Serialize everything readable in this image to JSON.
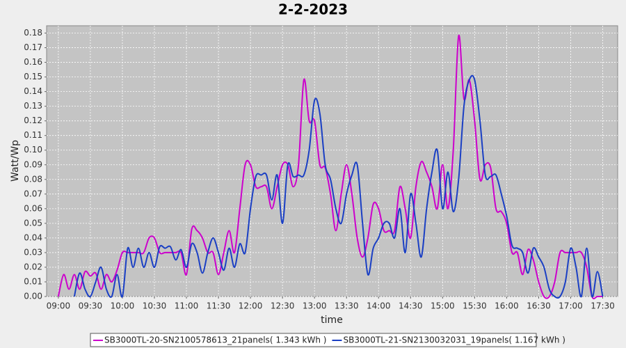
{
  "chart_data": {
    "type": "line",
    "title": "2-2-2023",
    "x_label": "time",
    "y_label": "Watt/Wp",
    "x": [
      "09:00",
      "09:05",
      "09:10",
      "09:15",
      "09:20",
      "09:25",
      "09:30",
      "09:35",
      "09:40",
      "09:45",
      "09:50",
      "09:55",
      "10:00",
      "10:05",
      "10:10",
      "10:15",
      "10:20",
      "10:25",
      "10:30",
      "10:35",
      "10:40",
      "10:45",
      "10:50",
      "10:55",
      "11:00",
      "11:05",
      "11:10",
      "11:15",
      "11:20",
      "11:25",
      "11:30",
      "11:35",
      "11:40",
      "11:45",
      "11:50",
      "11:55",
      "12:00",
      "12:05",
      "12:10",
      "12:15",
      "12:20",
      "12:25",
      "12:30",
      "12:35",
      "12:40",
      "12:45",
      "12:50",
      "12:55",
      "13:00",
      "13:05",
      "13:10",
      "13:15",
      "13:20",
      "13:25",
      "13:30",
      "13:35",
      "13:40",
      "13:45",
      "13:50",
      "13:55",
      "14:00",
      "14:05",
      "14:10",
      "14:15",
      "14:20",
      "14:25",
      "14:30",
      "14:35",
      "14:40",
      "14:45",
      "14:50",
      "14:55",
      "15:00",
      "15:05",
      "15:10",
      "15:15",
      "15:20",
      "15:25",
      "15:30",
      "15:35",
      "15:40",
      "15:45",
      "15:50",
      "15:55",
      "16:00",
      "16:05",
      "16:10",
      "16:15",
      "16:20",
      "16:25",
      "16:30",
      "16:35",
      "16:40",
      "16:45",
      "16:50",
      "16:55",
      "17:00",
      "17:05",
      "17:10",
      "17:15",
      "17:20",
      "17:25",
      "17:30"
    ],
    "series": [
      {
        "name": "SB3000TL-20-SN2100578613_21panels( 1.343 kWh )",
        "color": "#cc00cc",
        "values": [
          0.0,
          0.015,
          0.005,
          0.015,
          0.005,
          0.017,
          0.014,
          0.016,
          0.005,
          0.015,
          0.01,
          0.018,
          0.03,
          0.03,
          0.03,
          0.03,
          0.03,
          0.04,
          0.04,
          0.03,
          0.03,
          0.03,
          0.03,
          0.03,
          0.015,
          0.046,
          0.045,
          0.04,
          0.03,
          0.03,
          0.015,
          0.03,
          0.045,
          0.03,
          0.06,
          0.09,
          0.09,
          0.075,
          0.075,
          0.075,
          0.06,
          0.075,
          0.09,
          0.09,
          0.075,
          0.09,
          0.148,
          0.12,
          0.12,
          0.09,
          0.088,
          0.07,
          0.045,
          0.07,
          0.09,
          0.07,
          0.04,
          0.027,
          0.04,
          0.063,
          0.06,
          0.045,
          0.045,
          0.045,
          0.075,
          0.06,
          0.04,
          0.075,
          0.092,
          0.085,
          0.075,
          0.06,
          0.09,
          0.06,
          0.1,
          0.178,
          0.135,
          0.148,
          0.12,
          0.08,
          0.09,
          0.088,
          0.06,
          0.058,
          0.05,
          0.03,
          0.03,
          0.015,
          0.032,
          0.025,
          0.01,
          0.0,
          0.0,
          0.01,
          0.03,
          0.03,
          0.03,
          0.03,
          0.03,
          0.02,
          0.0,
          0.0,
          0.0
        ]
      },
      {
        "name": "SB3000TL-21-SN2130032031_19panels( 1.167 kWh )",
        "color": "#1a3fc4",
        "values": [
          null,
          null,
          null,
          0.0,
          0.016,
          0.005,
          0.0,
          0.01,
          0.02,
          0.005,
          0.0,
          0.015,
          0.0,
          0.033,
          0.02,
          0.033,
          0.02,
          0.03,
          0.02,
          0.034,
          0.033,
          0.034,
          0.025,
          0.032,
          0.02,
          0.036,
          0.03,
          0.016,
          0.03,
          0.04,
          0.03,
          0.018,
          0.033,
          0.02,
          0.036,
          0.03,
          0.06,
          0.082,
          0.083,
          0.083,
          0.066,
          0.083,
          0.05,
          0.09,
          0.082,
          0.083,
          0.083,
          0.1,
          0.134,
          0.125,
          0.09,
          0.08,
          0.06,
          0.05,
          0.07,
          0.083,
          0.09,
          0.05,
          0.015,
          0.033,
          0.04,
          0.05,
          0.05,
          0.04,
          0.06,
          0.03,
          0.07,
          0.05,
          0.027,
          0.06,
          0.085,
          0.1,
          0.06,
          0.085,
          0.058,
          0.08,
          0.13,
          0.148,
          0.148,
          0.12,
          0.083,
          0.082,
          0.083,
          0.07,
          0.055,
          0.035,
          0.033,
          0.03,
          0.016,
          0.033,
          0.027,
          0.02,
          0.005,
          0.0,
          0.0,
          0.01,
          0.033,
          0.02,
          0.0,
          0.033,
          0.0,
          0.017,
          0.0
        ]
      }
    ],
    "xlim": [
      "08:49",
      "17:44"
    ],
    "xticks": [
      "09:00",
      "09:30",
      "10:00",
      "10:30",
      "11:00",
      "11:30",
      "12:00",
      "12:30",
      "13:00",
      "13:30",
      "14:00",
      "14:30",
      "15:00",
      "15:30",
      "16:00",
      "16:30",
      "17:00",
      "17:30"
    ],
    "ylim": [
      0,
      0.185
    ],
    "yticks": [
      {
        "value": 0,
        "label": "0.00"
      },
      {
        "value": 0.01,
        "label": "0.01"
      },
      {
        "value": 0.02,
        "label": "0.02"
      },
      {
        "value": 0.03,
        "label": "0.03"
      },
      {
        "value": 0.04,
        "label": "0.04"
      },
      {
        "value": 0.05,
        "label": "0.05"
      },
      {
        "value": 0.06,
        "label": "0.06"
      },
      {
        "value": 0.07,
        "label": "0.07"
      },
      {
        "value": 0.08,
        "label": "0.08"
      },
      {
        "value": 0.09,
        "label": "0.09"
      },
      {
        "value": 0.1,
        "label": "0.10"
      },
      {
        "value": 0.11,
        "label": "0.11"
      },
      {
        "value": 0.12,
        "label": "0.12"
      },
      {
        "value": 0.13,
        "label": "0.13"
      },
      {
        "value": 0.14,
        "label": "0.14"
      },
      {
        "value": 0.15,
        "label": "0.15"
      },
      {
        "value": 0.16,
        "label": "0.16"
      },
      {
        "value": 0.17,
        "label": "0.17"
      },
      {
        "value": 0.18,
        "label": "0.18"
      }
    ],
    "grid": true
  }
}
